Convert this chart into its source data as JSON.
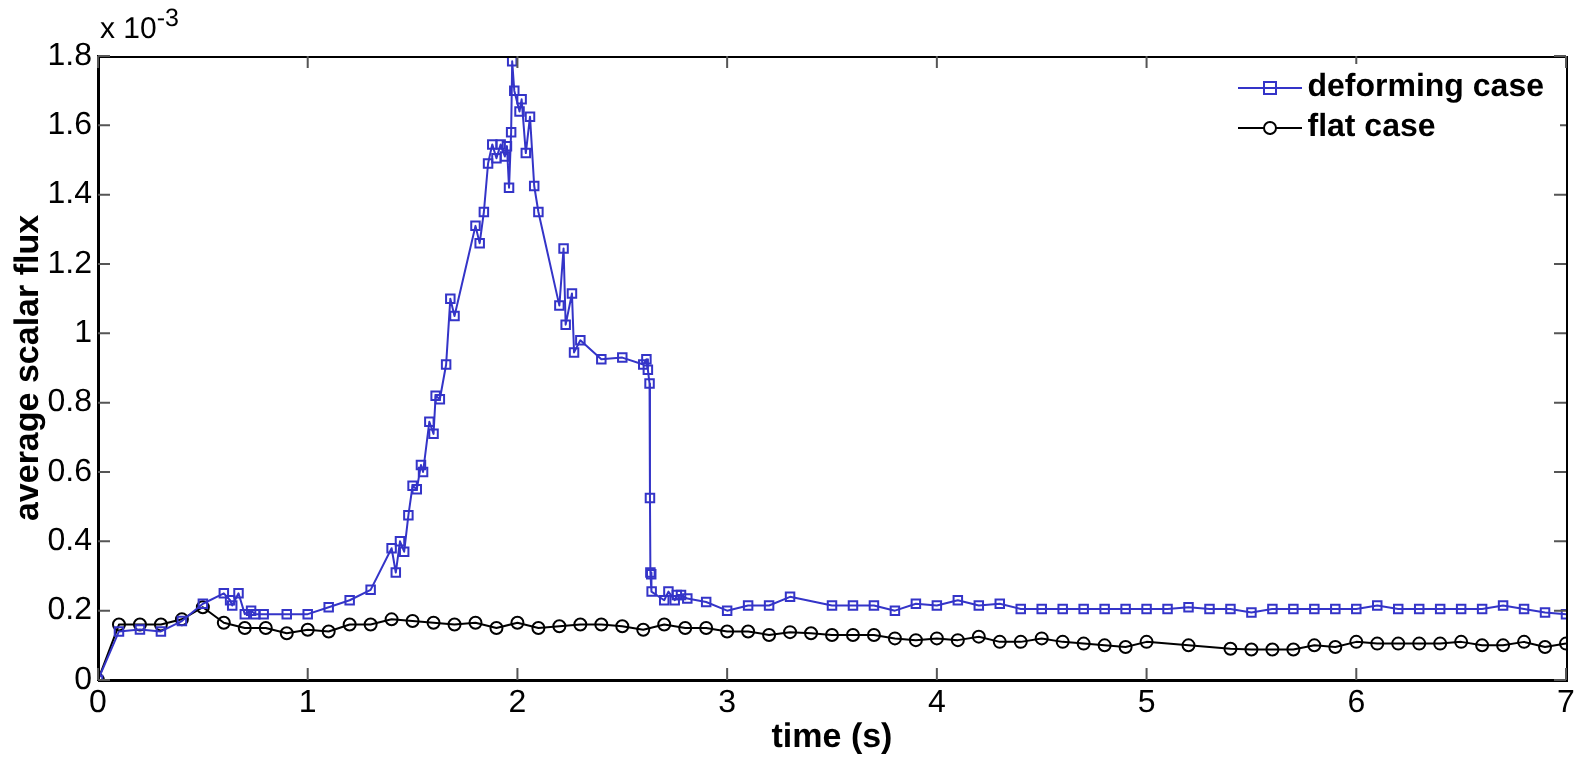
{
  "chart_data": {
    "type": "line",
    "xlabel": "time (s)",
    "ylabel": "average scalar flux",
    "annotations": [
      "x 10$^{-3}$"
    ],
    "xlim": [
      0,
      7
    ],
    "xticks": [
      0,
      1,
      2,
      3,
      4,
      5,
      6,
      7
    ],
    "ylim": [
      0,
      1.8
    ],
    "yticks": [
      0,
      0.2,
      0.4,
      0.6,
      0.8,
      1,
      1.2,
      1.4,
      1.6,
      1.8
    ],
    "grid": false,
    "legend": "top right",
    "line_style": "solid",
    "series": [
      {
        "name": "deforming case",
        "color": "#3434c8",
        "marker": "square",
        "x": [
          0,
          0.1,
          0.2,
          0.3,
          0.4,
          0.5,
          0.6,
          0.63,
          0.64,
          0.67,
          0.7,
          0.73,
          0.75,
          0.79,
          0.9,
          1.0,
          1.1,
          1.2,
          1.3,
          1.4,
          1.42,
          1.44,
          1.46,
          1.48,
          1.5,
          1.52,
          1.54,
          1.55,
          1.58,
          1.6,
          1.61,
          1.63,
          1.66,
          1.68,
          1.7,
          1.8,
          1.82,
          1.84,
          1.86,
          1.88,
          1.9,
          1.92,
          1.94,
          1.95,
          1.96,
          1.97,
          1.975,
          1.985,
          2.01,
          2.02,
          2.04,
          2.06,
          2.08,
          2.1,
          2.2,
          2.22,
          2.23,
          2.26,
          2.27,
          2.3,
          2.4,
          2.5,
          2.6,
          2.615,
          2.622,
          2.63,
          2.632,
          2.634,
          2.638,
          2.64,
          2.7,
          2.72,
          2.75,
          2.76,
          2.78,
          2.81,
          2.9,
          3.0,
          3.1,
          3.2,
          3.3,
          3.5,
          3.6,
          3.7,
          3.8,
          3.9,
          4.0,
          4.1,
          4.2,
          4.3,
          4.4,
          4.5,
          4.6,
          4.7,
          4.8,
          4.9,
          5.0,
          5.1,
          5.2,
          5.3,
          5.4,
          5.5,
          5.6,
          5.7,
          5.8,
          5.9,
          6.0,
          6.1,
          6.2,
          6.3,
          6.4,
          6.5,
          6.6,
          6.7,
          6.8,
          6.9,
          7.0
        ],
        "values": [
          0,
          0.14,
          0.146,
          0.14,
          0.17,
          0.22,
          0.25,
          0.23,
          0.215,
          0.25,
          0.19,
          0.2,
          0.19,
          0.19,
          0.19,
          0.19,
          0.21,
          0.23,
          0.26,
          0.38,
          0.31,
          0.4,
          0.37,
          0.475,
          0.56,
          0.55,
          0.62,
          0.6,
          0.745,
          0.71,
          0.82,
          0.81,
          0.91,
          1.1,
          1.05,
          1.31,
          1.26,
          1.35,
          1.49,
          1.545,
          1.505,
          1.545,
          1.51,
          1.54,
          1.42,
          1.58,
          1.785,
          1.7,
          1.64,
          1.675,
          1.52,
          1.625,
          1.425,
          1.35,
          1.08,
          1.245,
          1.025,
          1.115,
          0.945,
          0.98,
          0.925,
          0.93,
          0.91,
          0.925,
          0.895,
          0.855,
          0.525,
          0.31,
          0.305,
          0.255,
          0.23,
          0.255,
          0.23,
          0.245,
          0.245,
          0.235,
          0.225,
          0.2,
          0.215,
          0.215,
          0.24,
          0.215,
          0.215,
          0.215,
          0.2,
          0.22,
          0.215,
          0.23,
          0.215,
          0.22,
          0.205,
          0.205,
          0.205,
          0.205,
          0.205,
          0.205,
          0.205,
          0.205,
          0.21,
          0.205,
          0.205,
          0.195,
          0.205,
          0.205,
          0.205,
          0.205,
          0.205,
          0.215,
          0.205,
          0.205,
          0.205,
          0.205,
          0.205,
          0.215,
          0.205,
          0.195,
          0.19
        ]
      },
      {
        "name": "flat case",
        "color": "#000000",
        "marker": "circle",
        "x": [
          0,
          0.1,
          0.2,
          0.3,
          0.4,
          0.5,
          0.6,
          0.7,
          0.8,
          0.9,
          1.0,
          1.1,
          1.2,
          1.3,
          1.4,
          1.5,
          1.6,
          1.7,
          1.8,
          1.9,
          2.0,
          2.1,
          2.2,
          2.3,
          2.4,
          2.5,
          2.6,
          2.7,
          2.8,
          2.9,
          3.0,
          3.1,
          3.2,
          3.3,
          3.4,
          3.5,
          3.6,
          3.7,
          3.8,
          3.9,
          4.0,
          4.1,
          4.2,
          4.3,
          4.4,
          4.5,
          4.6,
          4.7,
          4.8,
          4.9,
          5.0,
          5.2,
          5.4,
          5.5,
          5.6,
          5.7,
          5.8,
          5.9,
          6.0,
          6.1,
          6.2,
          6.3,
          6.4,
          6.5,
          6.6,
          6.7,
          6.8,
          6.9,
          7.0
        ],
        "values": [
          0,
          0.16,
          0.16,
          0.16,
          0.175,
          0.21,
          0.165,
          0.15,
          0.15,
          0.135,
          0.145,
          0.14,
          0.16,
          0.16,
          0.175,
          0.17,
          0.165,
          0.16,
          0.165,
          0.15,
          0.165,
          0.15,
          0.155,
          0.16,
          0.16,
          0.155,
          0.145,
          0.16,
          0.15,
          0.15,
          0.14,
          0.14,
          0.13,
          0.138,
          0.135,
          0.13,
          0.13,
          0.13,
          0.12,
          0.115,
          0.12,
          0.115,
          0.125,
          0.11,
          0.11,
          0.12,
          0.11,
          0.105,
          0.1,
          0.095,
          0.11,
          0.1,
          0.09,
          0.088,
          0.088,
          0.088,
          0.1,
          0.095,
          0.11,
          0.105,
          0.105,
          0.105,
          0.105,
          0.11,
          0.1,
          0.1,
          0.11,
          0.095,
          0.105
        ]
      }
    ]
  }
}
